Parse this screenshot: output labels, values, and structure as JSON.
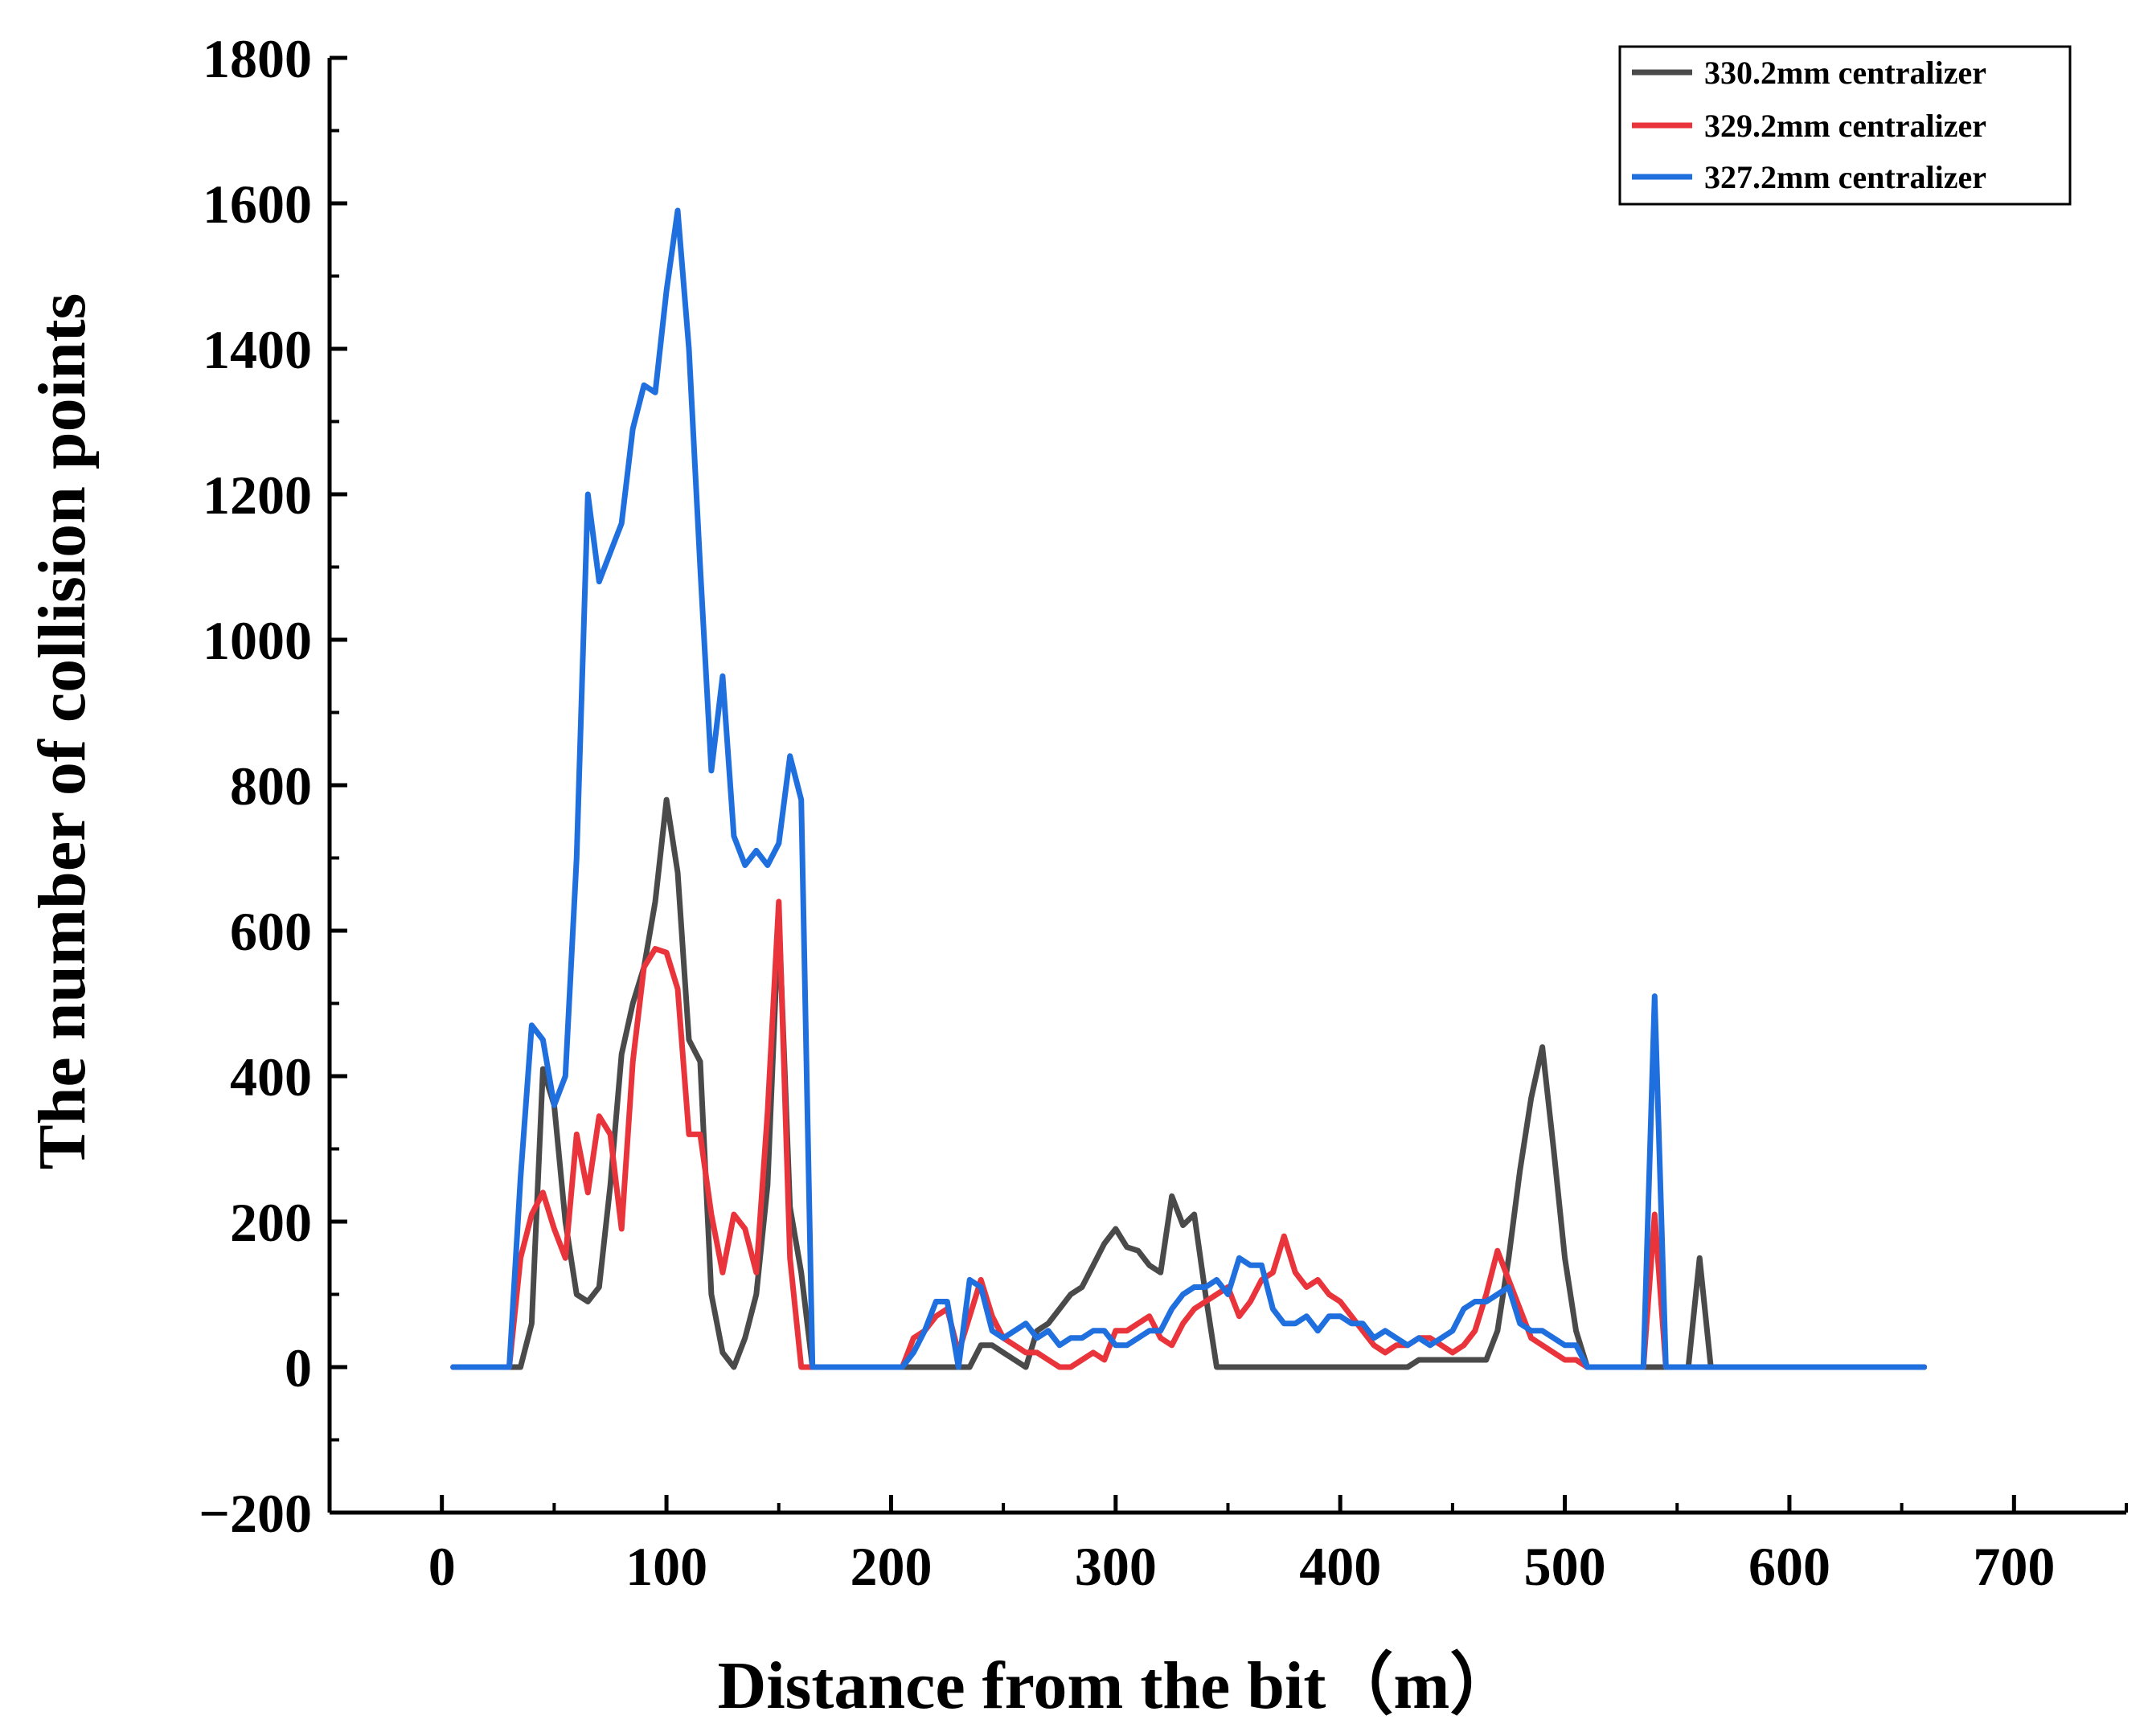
{
  "chart_data": {
    "type": "line",
    "title": "",
    "xlabel": "Distance from the bit（m）",
    "ylabel": "The number of collision points",
    "xlim": [
      -50,
      750
    ],
    "ylim": [
      -200,
      1800
    ],
    "xticks": [
      0,
      100,
      200,
      300,
      400,
      500,
      600,
      700
    ],
    "yticks": [
      -200,
      0,
      200,
      400,
      600,
      800,
      1000,
      1200,
      1400,
      1600,
      1800
    ],
    "xtick_labels": [
      "0",
      "100",
      "200",
      "300",
      "400",
      "500",
      "600",
      "700"
    ],
    "ytick_labels": [
      "−200",
      "0",
      "200",
      "400",
      "600",
      "800",
      "1000",
      "1200",
      "1400",
      "1600",
      "1800"
    ],
    "legend_position": "top-right",
    "series": [
      {
        "name": "330.2mm centralizer",
        "color": "#4a4a4a",
        "x": [
          5,
          10,
          15,
          20,
          25,
          30,
          35,
          40,
          45,
          50,
          55,
          60,
          65,
          70,
          75,
          80,
          85,
          90,
          95,
          100,
          105,
          110,
          115,
          120,
          125,
          130,
          135,
          140,
          145,
          150,
          155,
          160,
          165,
          170,
          175,
          180,
          185,
          190,
          195,
          200,
          205,
          210,
          215,
          220,
          225,
          230,
          235,
          240,
          245,
          250,
          255,
          260,
          265,
          270,
          275,
          280,
          285,
          290,
          295,
          300,
          305,
          310,
          315,
          320,
          325,
          330,
          335,
          340,
          345,
          350,
          355,
          360,
          365,
          370,
          375,
          380,
          385,
          390,
          395,
          400,
          405,
          410,
          415,
          420,
          425,
          430,
          435,
          440,
          445,
          450,
          455,
          460,
          465,
          470,
          475,
          480,
          485,
          490,
          495,
          500,
          505,
          510,
          515,
          520,
          525,
          530,
          535,
          540,
          545,
          550,
          555,
          560,
          565,
          570,
          575,
          580,
          585,
          590,
          595,
          600,
          605,
          610,
          615,
          620,
          625,
          630,
          635,
          640,
          645,
          650,
          655,
          660
        ],
        "y": [
          0,
          0,
          0,
          0,
          0,
          0,
          0,
          60,
          410,
          360,
          200,
          100,
          90,
          110,
          250,
          430,
          500,
          550,
          640,
          780,
          680,
          450,
          420,
          100,
          20,
          0,
          40,
          100,
          250,
          620,
          220,
          130,
          0,
          0,
          0,
          0,
          0,
          0,
          0,
          0,
          0,
          0,
          0,
          0,
          0,
          0,
          0,
          30,
          30,
          20,
          10,
          0,
          50,
          60,
          80,
          100,
          110,
          140,
          170,
          190,
          165,
          160,
          140,
          130,
          235,
          195,
          210,
          100,
          0,
          0,
          0,
          0,
          0,
          0,
          0,
          0,
          0,
          0,
          0,
          0,
          0,
          0,
          0,
          0,
          0,
          0,
          10,
          10,
          10,
          10,
          10,
          10,
          10,
          50,
          150,
          270,
          370,
          440,
          300,
          150,
          50,
          0,
          0,
          0,
          0,
          0,
          0,
          0,
          0,
          0,
          0,
          150,
          0,
          0,
          0,
          0,
          0,
          0,
          0,
          0,
          0,
          0,
          0,
          0,
          0,
          0,
          0,
          0,
          0,
          0,
          0,
          0
        ]
      },
      {
        "name": "329.2mm centralizer",
        "color": "#e8343a",
        "x": [
          5,
          10,
          15,
          20,
          25,
          30,
          35,
          40,
          45,
          50,
          55,
          60,
          65,
          70,
          75,
          80,
          85,
          90,
          95,
          100,
          105,
          110,
          115,
          120,
          125,
          130,
          135,
          140,
          145,
          150,
          155,
          160,
          165,
          170,
          175,
          180,
          185,
          190,
          195,
          200,
          205,
          210,
          215,
          220,
          225,
          230,
          235,
          240,
          245,
          250,
          255,
          260,
          265,
          270,
          275,
          280,
          285,
          290,
          295,
          300,
          305,
          310,
          315,
          320,
          325,
          330,
          335,
          340,
          345,
          350,
          355,
          360,
          365,
          370,
          375,
          380,
          385,
          390,
          395,
          400,
          405,
          410,
          415,
          420,
          425,
          430,
          435,
          440,
          445,
          450,
          455,
          460,
          465,
          470,
          475,
          480,
          485,
          490,
          495,
          500,
          505,
          510,
          515,
          520,
          525,
          530,
          535,
          540,
          545,
          550,
          555,
          560,
          565,
          570,
          575,
          580,
          585,
          590,
          595,
          600,
          605,
          610,
          615,
          620,
          625,
          630,
          635,
          640,
          645,
          650,
          655,
          660
        ],
        "y": [
          0,
          0,
          0,
          0,
          0,
          0,
          150,
          210,
          240,
          190,
          150,
          320,
          240,
          345,
          320,
          190,
          420,
          550,
          575,
          570,
          520,
          320,
          320,
          210,
          130,
          210,
          190,
          130,
          350,
          640,
          150,
          0,
          0,
          0,
          0,
          0,
          0,
          0,
          0,
          0,
          0,
          40,
          50,
          70,
          80,
          20,
          70,
          120,
          70,
          40,
          30,
          20,
          20,
          10,
          0,
          0,
          10,
          20,
          10,
          50,
          50,
          60,
          70,
          40,
          30,
          60,
          80,
          90,
          100,
          110,
          70,
          90,
          120,
          130,
          180,
          130,
          110,
          120,
          100,
          90,
          70,
          50,
          30,
          20,
          30,
          30,
          40,
          40,
          30,
          20,
          30,
          50,
          100,
          160,
          120,
          80,
          40,
          30,
          20,
          10,
          10,
          0,
          0,
          0,
          0,
          0,
          0,
          210,
          0,
          0,
          0,
          0,
          0,
          0,
          0,
          0,
          0,
          0,
          0,
          0,
          0,
          0,
          0,
          0,
          0,
          0,
          0,
          0,
          0,
          0,
          0,
          0
        ]
      },
      {
        "name": "327.2mm centralizer",
        "color": "#1f6fde",
        "x": [
          5,
          10,
          15,
          20,
          25,
          30,
          35,
          40,
          45,
          50,
          55,
          60,
          65,
          70,
          75,
          80,
          85,
          90,
          95,
          100,
          105,
          110,
          115,
          120,
          125,
          130,
          135,
          140,
          145,
          150,
          155,
          160,
          165,
          170,
          175,
          180,
          185,
          190,
          195,
          200,
          205,
          210,
          215,
          220,
          225,
          230,
          235,
          240,
          245,
          250,
          255,
          260,
          265,
          270,
          275,
          280,
          285,
          290,
          295,
          300,
          305,
          310,
          315,
          320,
          325,
          330,
          335,
          340,
          345,
          350,
          355,
          360,
          365,
          370,
          375,
          380,
          385,
          390,
          395,
          400,
          405,
          410,
          415,
          420,
          425,
          430,
          435,
          440,
          445,
          450,
          455,
          460,
          465,
          470,
          475,
          480,
          485,
          490,
          495,
          500,
          505,
          510,
          515,
          520,
          525,
          530,
          535,
          540,
          545,
          550,
          555,
          560,
          565,
          570,
          575,
          580,
          585,
          590,
          595,
          600,
          605,
          610,
          615,
          620,
          625,
          630,
          635,
          640,
          645,
          650,
          655,
          660
        ],
        "y": [
          0,
          0,
          0,
          0,
          0,
          0,
          260,
          470,
          450,
          360,
          400,
          700,
          1200,
          1080,
          1120,
          1160,
          1290,
          1350,
          1340,
          1480,
          1590,
          1400,
          1100,
          820,
          950,
          730,
          690,
          710,
          690,
          720,
          840,
          780,
          0,
          0,
          0,
          0,
          0,
          0,
          0,
          0,
          0,
          20,
          50,
          90,
          90,
          0,
          120,
          110,
          50,
          40,
          50,
          60,
          40,
          50,
          30,
          40,
          40,
          50,
          50,
          30,
          30,
          40,
          50,
          50,
          80,
          100,
          110,
          110,
          120,
          100,
          150,
          140,
          140,
          80,
          60,
          60,
          70,
          50,
          70,
          70,
          60,
          60,
          40,
          50,
          40,
          30,
          40,
          30,
          40,
          50,
          80,
          90,
          90,
          100,
          110,
          60,
          50,
          50,
          40,
          30,
          30,
          0,
          0,
          0,
          0,
          0,
          0,
          510,
          0,
          0,
          0,
          0,
          0,
          0,
          0,
          0,
          0,
          0,
          0,
          0,
          0,
          0,
          0,
          0,
          0,
          0,
          0,
          0,
          0,
          0,
          0,
          0
        ]
      }
    ]
  }
}
